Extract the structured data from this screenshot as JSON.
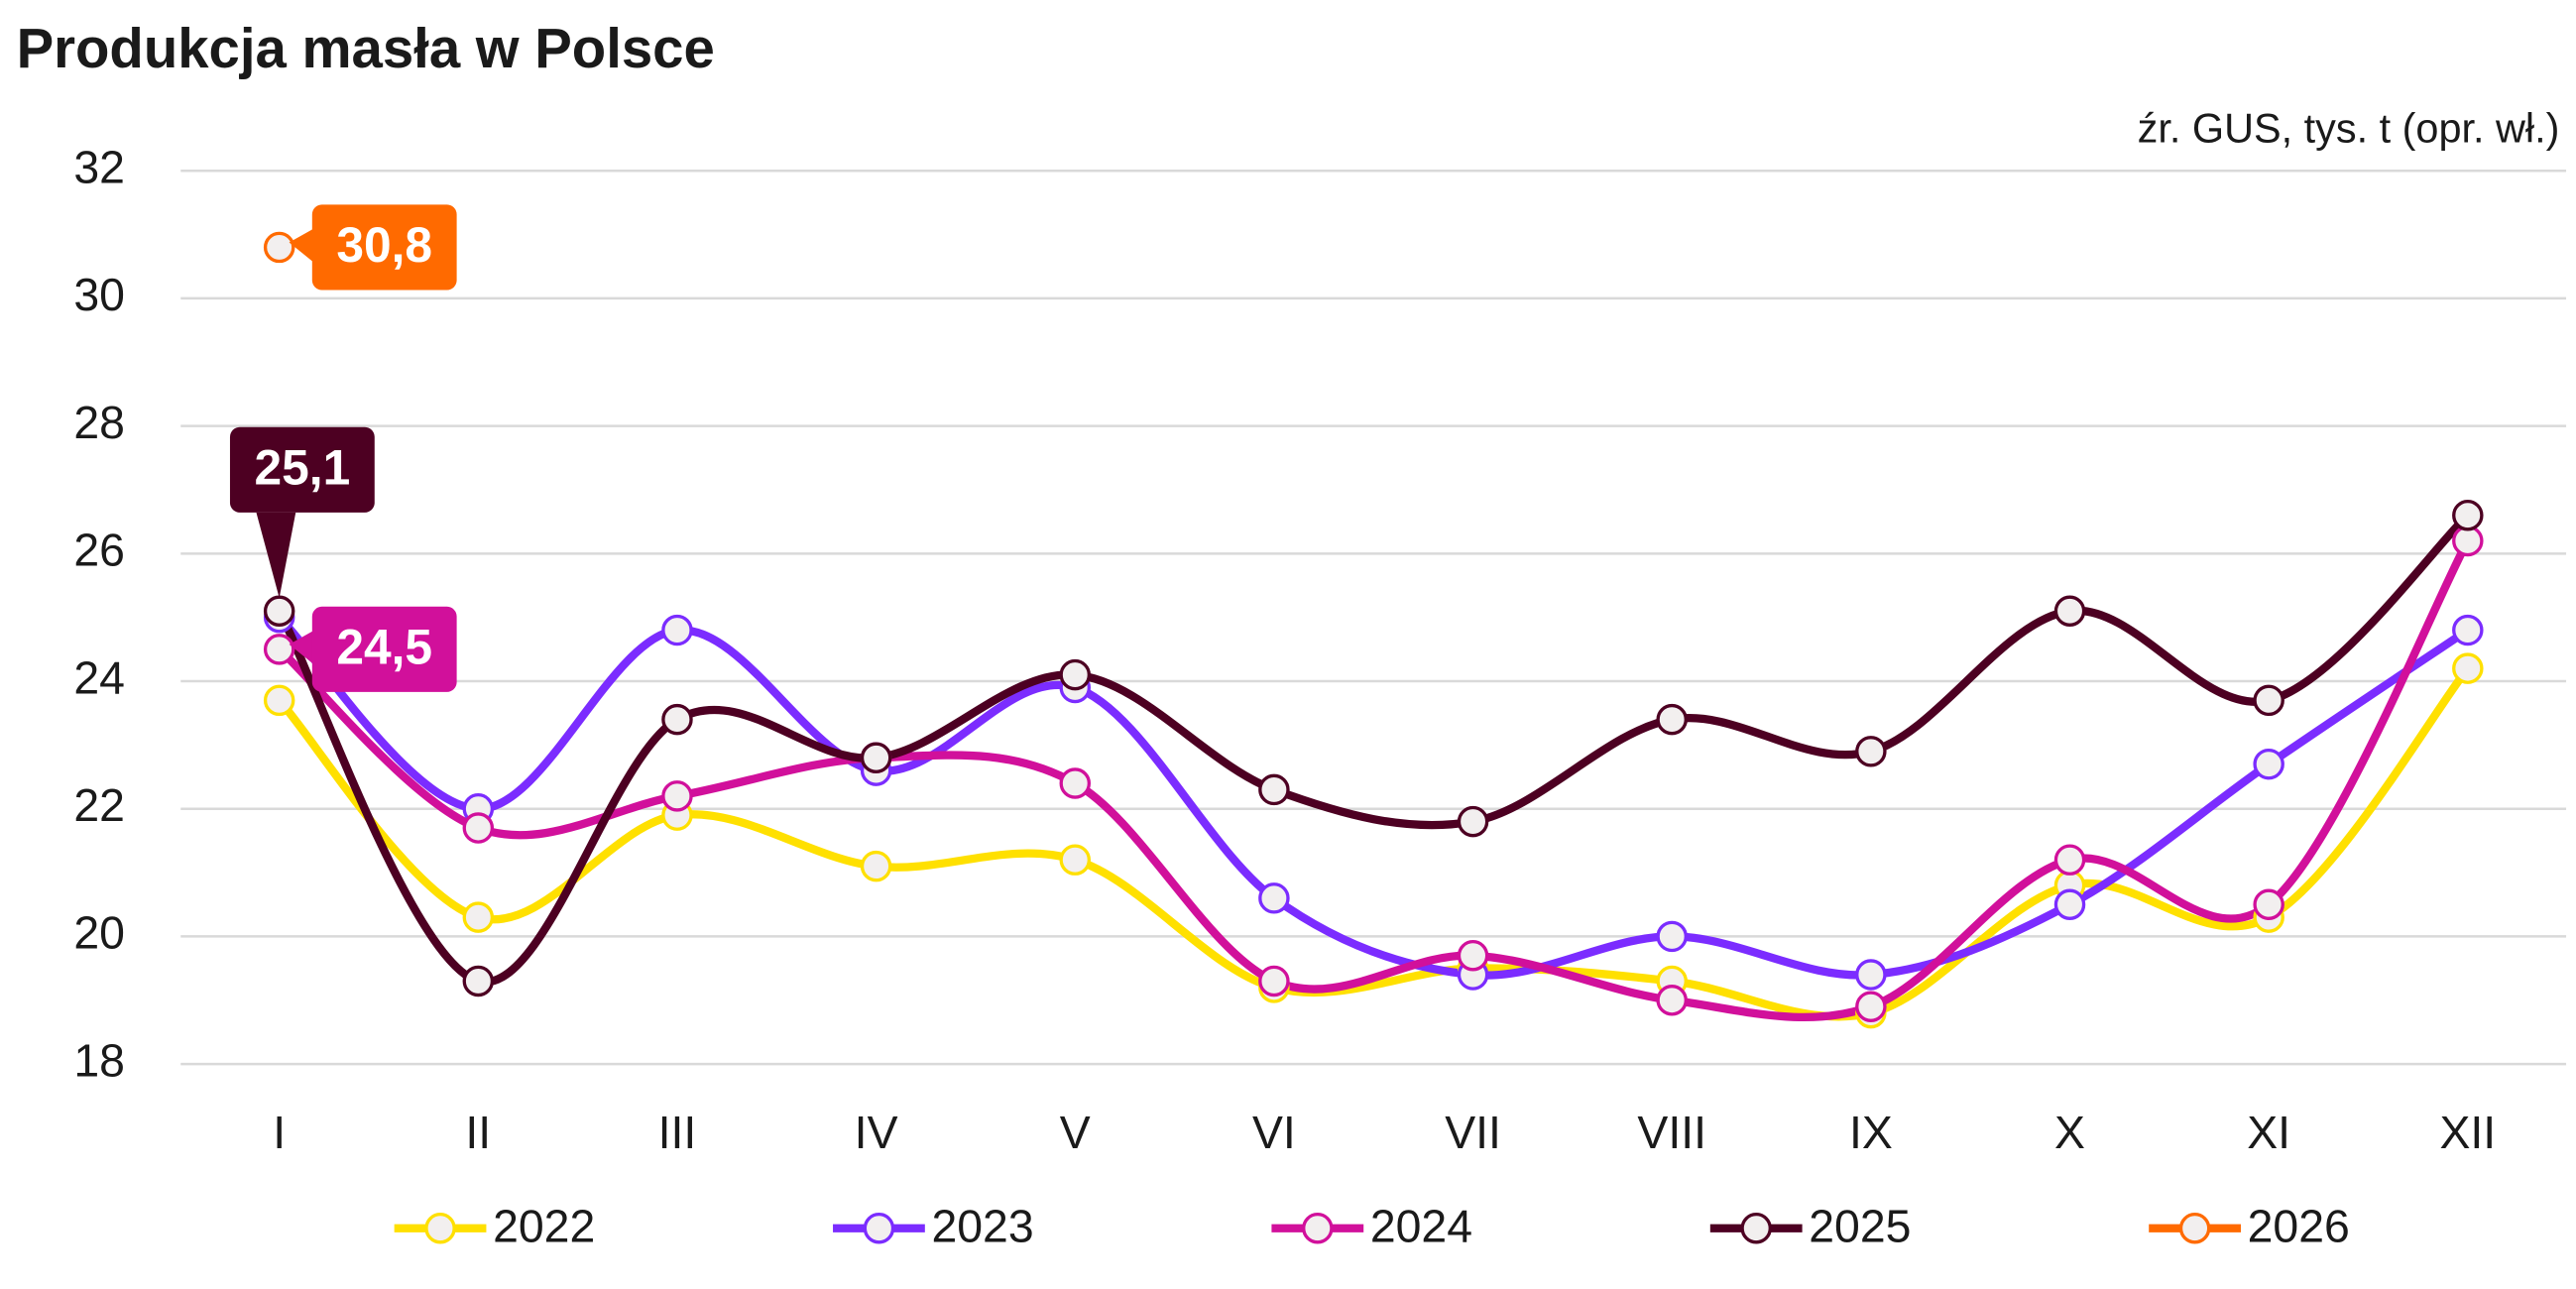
{
  "chart_data": {
    "type": "line",
    "title": "Produkcja masła w Polsce",
    "source": "źr. GUS, tys. t (opr. wł.)",
    "categories": [
      "I",
      "II",
      "III",
      "IV",
      "V",
      "VI",
      "VII",
      "VIII",
      "IX",
      "X",
      "XI",
      "XII"
    ],
    "ylim": [
      18,
      32
    ],
    "yticks": [
      18,
      20,
      22,
      24,
      26,
      28,
      30,
      32
    ],
    "grid": true,
    "legend": "bottom",
    "series": [
      {
        "name": "2022",
        "color": "#ffe000",
        "values": [
          23.7,
          20.3,
          21.9,
          21.1,
          21.2,
          19.2,
          19.5,
          19.3,
          18.8,
          20.8,
          20.3,
          24.2
        ]
      },
      {
        "name": "2023",
        "color": "#7b2cff",
        "values": [
          25.0,
          22.0,
          24.8,
          22.6,
          23.9,
          20.6,
          19.4,
          20.0,
          19.4,
          20.5,
          22.7,
          24.8
        ]
      },
      {
        "name": "2024",
        "color": "#d1109b",
        "values": [
          24.5,
          21.7,
          22.2,
          22.8,
          22.4,
          19.3,
          19.7,
          19.0,
          18.9,
          21.2,
          20.5,
          26.2
        ],
        "value_labels": [
          "24,5",
          null,
          null,
          null,
          null,
          null,
          null,
          null,
          null,
          null,
          null,
          null
        ]
      },
      {
        "name": "2025",
        "color": "#4d0022",
        "values": [
          25.1,
          19.3,
          23.4,
          22.8,
          24.1,
          22.3,
          21.8,
          23.4,
          22.9,
          25.1,
          23.7,
          26.6
        ],
        "value_labels": [
          "25,1",
          null,
          null,
          null,
          null,
          null,
          null,
          null,
          null,
          null,
          null,
          null
        ]
      },
      {
        "name": "2026",
        "color": "#ff6a00",
        "values": [
          30.8,
          null,
          null,
          null,
          null,
          null,
          null,
          null,
          null,
          null,
          null,
          null
        ],
        "value_labels": [
          "30,8",
          null,
          null,
          null,
          null,
          null,
          null,
          null,
          null,
          null,
          null,
          null
        ]
      }
    ]
  }
}
